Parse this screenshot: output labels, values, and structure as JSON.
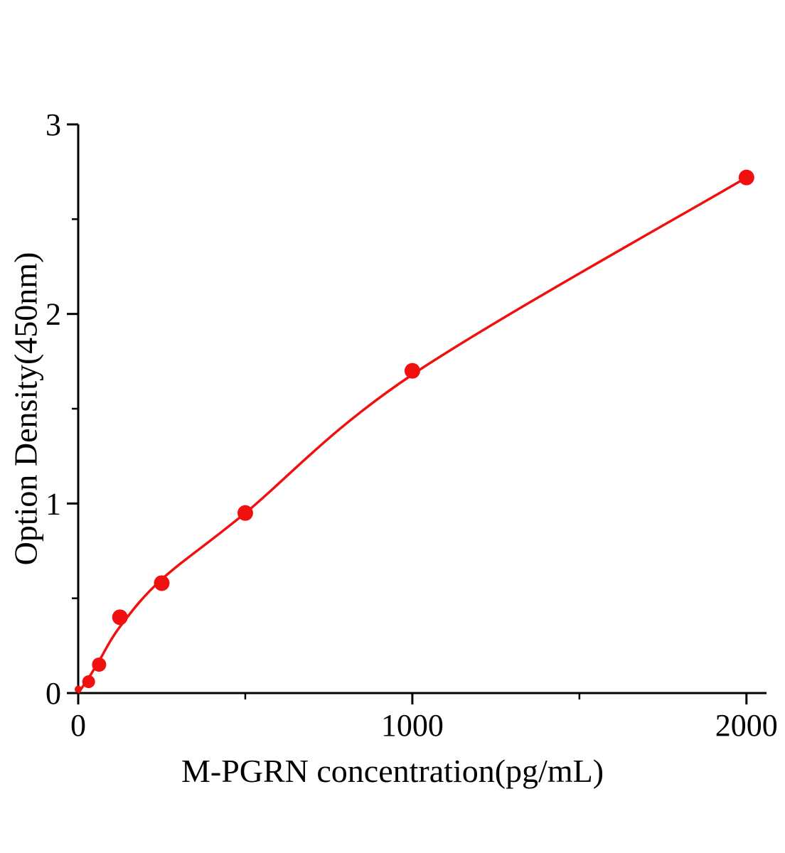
{
  "chart_data": {
    "type": "scatter",
    "title": "",
    "xlabel": "M-PGRN concentration(pg/mL)",
    "ylabel": "Option Density(450nm)",
    "xlim": [
      0,
      2060
    ],
    "ylim": [
      0,
      3
    ],
    "x_major_ticks": [
      0,
      1000,
      2000
    ],
    "x_minor_ticks": [
      500,
      1500
    ],
    "y_major_ticks": [
      0,
      1,
      2,
      3
    ],
    "y_minor_ticks": [
      0.5,
      1.5,
      2.5
    ],
    "points": [
      {
        "x": 0,
        "y": 0.02,
        "r": 5
      },
      {
        "x": 31.25,
        "y": 0.06,
        "r": 9
      },
      {
        "x": 62.5,
        "y": 0.15,
        "r": 10
      },
      {
        "x": 125,
        "y": 0.4,
        "r": 11
      },
      {
        "x": 250,
        "y": 0.58,
        "r": 11
      },
      {
        "x": 500,
        "y": 0.95,
        "r": 11
      },
      {
        "x": 1000,
        "y": 1.7,
        "r": 11
      },
      {
        "x": 2000,
        "y": 2.72,
        "r": 11
      }
    ],
    "fit_curve": [
      [
        0,
        0
      ],
      [
        31.25,
        0.08
      ],
      [
        62.5,
        0.17
      ],
      [
        125,
        0.35
      ],
      [
        250,
        0.6
      ],
      [
        500,
        0.95
      ],
      [
        1000,
        1.68
      ],
      [
        2000,
        2.72
      ]
    ],
    "point_color": "#f01010",
    "line_color": "#f01010",
    "axis_color": "#000000",
    "grid": false,
    "legend": null
  }
}
